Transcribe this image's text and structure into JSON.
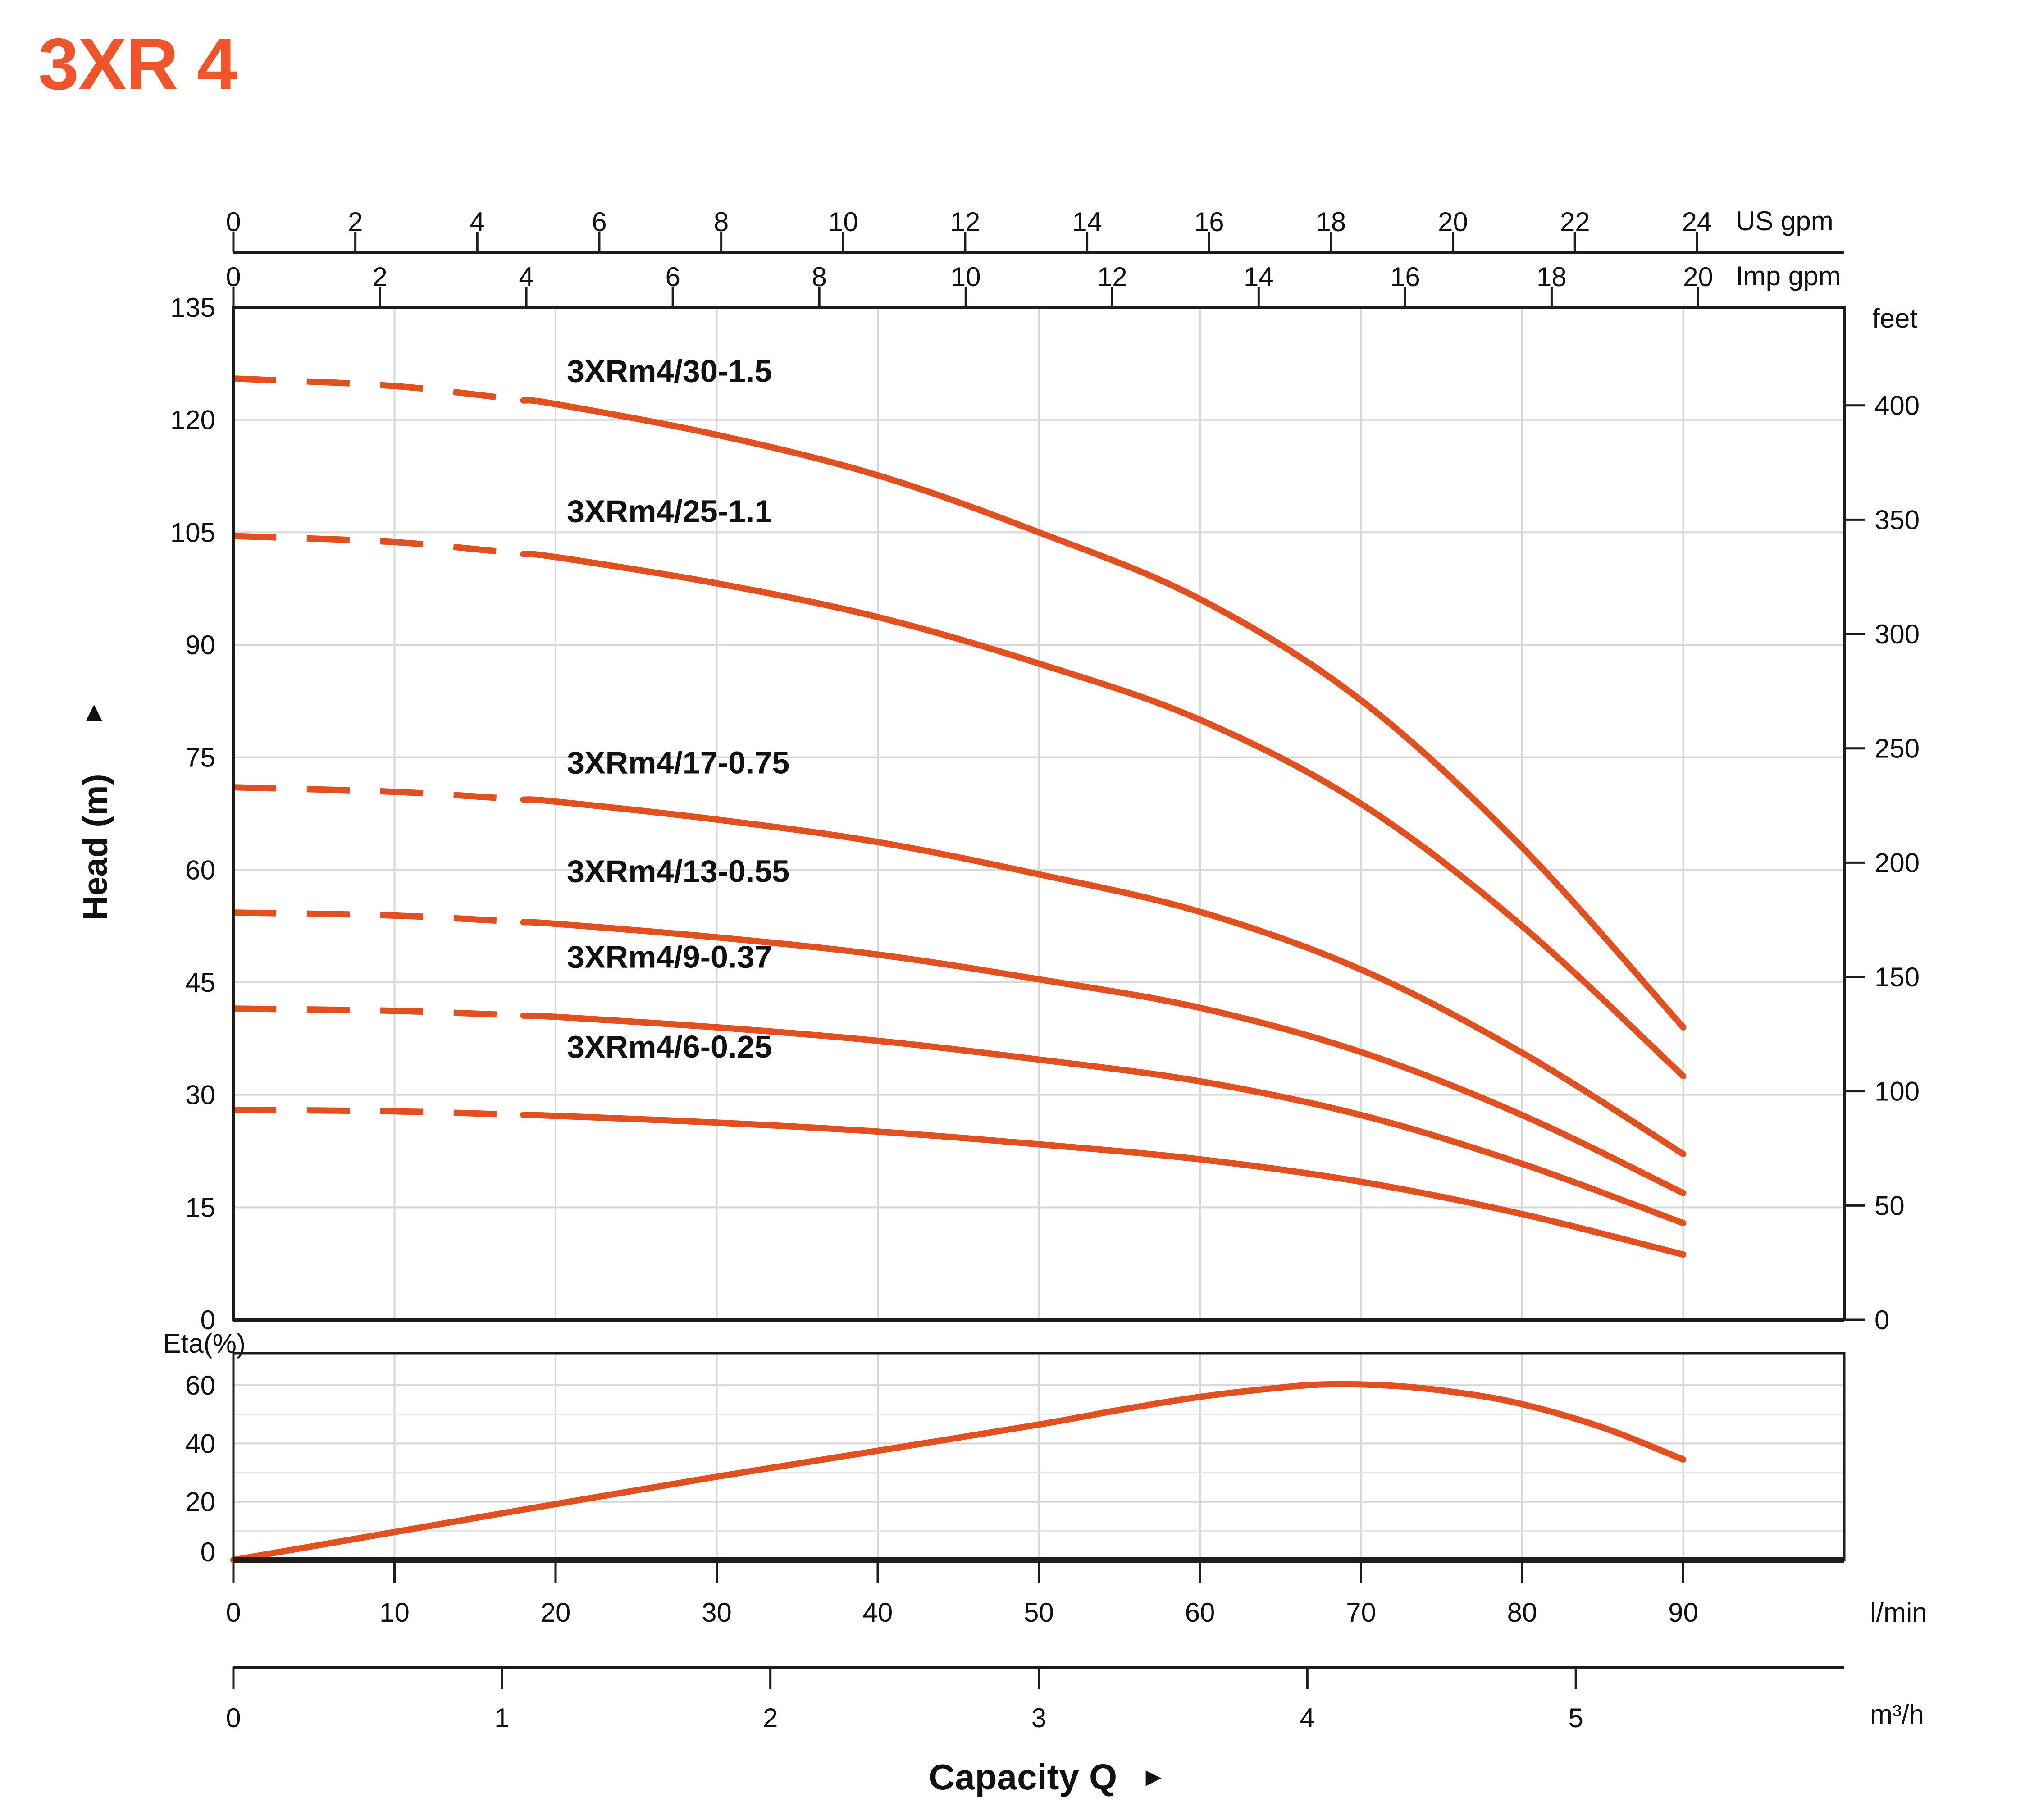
{
  "title": "3XR 4",
  "labels": {
    "head_axis": "Head (m)",
    "head_axis_arrow": "▲",
    "capacity_arrow": "►"
  },
  "colors": {
    "accent": "#f0542a",
    "curve": "#e1501e",
    "grid": "#d8d8d8",
    "grid_minor": "#e6e6e6",
    "axis": "#1d1d1b",
    "text": "#111111"
  },
  "chart_data": [
    {
      "type": "line",
      "name": "head-capacity-curves",
      "x_unit_primary": "l/min",
      "x_range": [
        0,
        100
      ],
      "y_label": "Head (m)",
      "y_range": [
        0,
        135
      ],
      "y_ticks": [
        0,
        15,
        30,
        45,
        60,
        75,
        90,
        105,
        120,
        135
      ],
      "y_gridlines": [
        15,
        30,
        45,
        60,
        75,
        90,
        105,
        120
      ],
      "x_gridlines": [
        10,
        20,
        30,
        40,
        50,
        60,
        70,
        80,
        90
      ],
      "grid": "on",
      "min_flow_dash_lmin": 18,
      "top_axes": [
        {
          "unit": "US gpm",
          "ticks": [
            0,
            2,
            4,
            6,
            8,
            10,
            12,
            14,
            16,
            18,
            20,
            22,
            24
          ],
          "lmin_per_unit": 3.7854
        },
        {
          "unit": "Imp gpm",
          "ticks": [
            0,
            2,
            4,
            6,
            8,
            10,
            12,
            14,
            16,
            18,
            20
          ],
          "lmin_per_unit": 4.5461
        }
      ],
      "right_axis": {
        "unit": "feet",
        "ticks": [
          0,
          50,
          100,
          150,
          200,
          250,
          300,
          350,
          400
        ],
        "m_per_unit": 0.3048
      },
      "series": [
        {
          "label": "3XRm4/30-1.5",
          "label_at": [
            20.7,
            126.5
          ],
          "q_lmin": [
            0,
            10,
            20,
            30,
            40,
            50,
            60,
            70,
            80,
            90
          ],
          "head_m": [
            125.5,
            124.5,
            122.1,
            118.0,
            112.6,
            105.0,
            96.1,
            82.6,
            63.0,
            39.0
          ]
        },
        {
          "label": "3XRm4/25-1.1",
          "label_at": [
            20.7,
            107.8
          ],
          "q_lmin": [
            0,
            10,
            20,
            30,
            40,
            50,
            60,
            70,
            80,
            90
          ],
          "head_m": [
            104.5,
            103.7,
            101.7,
            98.2,
            93.7,
            87.5,
            80.0,
            68.8,
            52.5,
            32.5
          ]
        },
        {
          "label": "3XRm4/17-0.75",
          "label_at": [
            20.7,
            74.3
          ],
          "q_lmin": [
            0,
            10,
            20,
            30,
            40,
            50,
            60,
            70,
            80,
            90
          ],
          "head_m": [
            71.0,
            70.4,
            69.1,
            66.7,
            63.7,
            59.4,
            54.4,
            46.7,
            35.6,
            22.1
          ]
        },
        {
          "label": "3XRm4/13-0.55",
          "label_at": [
            20.7,
            59.8
          ],
          "q_lmin": [
            0,
            10,
            20,
            30,
            40,
            50,
            60,
            70,
            80,
            90
          ],
          "head_m": [
            54.3,
            53.9,
            52.8,
            51.0,
            48.7,
            45.4,
            41.6,
            35.7,
            27.3,
            16.9
          ]
        },
        {
          "label": "3XRm4/9-0.37",
          "label_at": [
            20.7,
            48.4
          ],
          "q_lmin": [
            0,
            10,
            20,
            30,
            40,
            50,
            60,
            70,
            80,
            90
          ],
          "head_m": [
            41.5,
            41.2,
            40.4,
            39.0,
            37.2,
            34.7,
            31.8,
            27.3,
            20.8,
            12.9
          ]
        },
        {
          "label": "3XRm4/6-0.25",
          "label_at": [
            20.7,
            36.4
          ],
          "q_lmin": [
            0,
            10,
            20,
            30,
            40,
            50,
            60,
            70,
            80,
            90
          ],
          "head_m": [
            28.0,
            27.8,
            27.2,
            26.3,
            25.1,
            23.4,
            21.4,
            18.4,
            14.1,
            8.7
          ]
        }
      ]
    },
    {
      "type": "line",
      "name": "efficiency-curve",
      "y_label": "Eta(%)",
      "y_range": [
        0,
        71
      ],
      "y_ticks": [
        0,
        20,
        40,
        60
      ],
      "y_gridlines": [
        10,
        20,
        30,
        40,
        50,
        60
      ],
      "x_gridlines": [
        10,
        20,
        30,
        40,
        50,
        60,
        70,
        80,
        90
      ],
      "grid": "on",
      "x_label": "Capacity Q",
      "series": [
        {
          "label": "Eta",
          "q_lmin": [
            0,
            10,
            20,
            30,
            40,
            50,
            55,
            60,
            65,
            68,
            72,
            76,
            80,
            85,
            90
          ],
          "eta_pct": [
            0,
            9.6,
            19.2,
            28.6,
            37.5,
            46.5,
            51.5,
            56.0,
            59.2,
            60.3,
            59.8,
            57.5,
            53.5,
            45.5,
            34.5
          ]
        }
      ],
      "bottom_axes": [
        {
          "unit": "l/min",
          "ticks": [
            0,
            10,
            20,
            30,
            40,
            50,
            60,
            70,
            80,
            90
          ],
          "lmin_per_unit": 1
        },
        {
          "unit": "m³/h",
          "ticks": [
            0,
            1,
            2,
            3,
            4,
            5
          ],
          "lmin_per_unit": 16.6667
        }
      ]
    }
  ]
}
